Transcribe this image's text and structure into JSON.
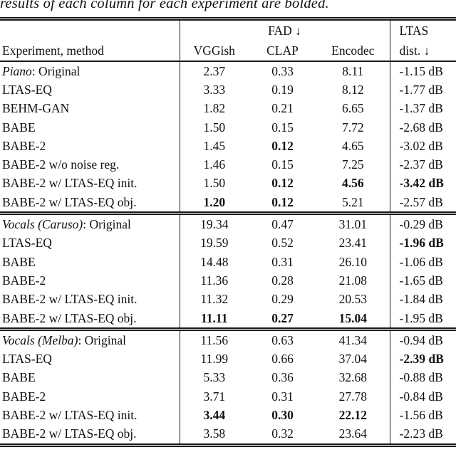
{
  "caption": "results of each column for each experiment are bolded.",
  "header": {
    "experiment": "Experiment, method",
    "fad_group": "FAD ↓",
    "vggish": "VGGish",
    "clap": "CLAP",
    "encodec": "Encodec",
    "ltas_line1": "LTAS",
    "ltas_line2": "dist. ↓"
  },
  "text_color": "#111111",
  "chart_data": {
    "type": "table",
    "title": "results of each column for each experiment are bolded.",
    "columns": [
      "Experiment, method",
      "FAD VGGish",
      "FAD CLAP",
      "FAD Encodec",
      "LTAS dist."
    ]
  },
  "sections": [
    {
      "rows": [
        {
          "prefix": "Piano",
          "rest": ": Original",
          "cells": [
            [
              "2.37",
              0
            ],
            [
              "0.33",
              0
            ],
            [
              "8.11",
              0
            ],
            [
              "-1.15 dB",
              0
            ]
          ]
        },
        {
          "prefix": "",
          "rest": "LTAS-EQ",
          "cells": [
            [
              "3.33",
              0
            ],
            [
              "0.19",
              0
            ],
            [
              "8.12",
              0
            ],
            [
              "-1.77 dB",
              0
            ]
          ]
        },
        {
          "prefix": "",
          "rest": "BEHM-GAN",
          "cells": [
            [
              "1.82",
              0
            ],
            [
              "0.21",
              0
            ],
            [
              "6.65",
              0
            ],
            [
              "-1.37 dB",
              0
            ]
          ]
        },
        {
          "prefix": "",
          "rest": "BABE",
          "cells": [
            [
              "1.50",
              0
            ],
            [
              "0.15",
              0
            ],
            [
              "7.72",
              0
            ],
            [
              "-2.68 dB",
              0
            ]
          ]
        },
        {
          "prefix": "",
          "rest": "BABE-2",
          "cells": [
            [
              "1.45",
              0
            ],
            [
              "0.12",
              1
            ],
            [
              "4.65",
              0
            ],
            [
              "-3.02 dB",
              0
            ]
          ]
        },
        {
          "prefix": "",
          "rest": "BABE-2 w/o noise reg.",
          "cells": [
            [
              "1.46",
              0
            ],
            [
              "0.15",
              0
            ],
            [
              "7.25",
              0
            ],
            [
              "-2.37 dB",
              0
            ]
          ]
        },
        {
          "prefix": "",
          "rest": "BABE-2 w/ LTAS-EQ init.",
          "cells": [
            [
              "1.50",
              0
            ],
            [
              "0.12",
              1
            ],
            [
              "4.56",
              1
            ],
            [
              "-3.42 dB",
              1
            ]
          ]
        },
        {
          "prefix": "",
          "rest": "BABE-2 w/ LTAS-EQ obj.",
          "cells": [
            [
              "1.20",
              1
            ],
            [
              "0.12",
              1
            ],
            [
              "5.21",
              0
            ],
            [
              "-2.57 dB",
              0
            ]
          ]
        }
      ]
    },
    {
      "rows": [
        {
          "prefix": "Vocals (Caruso)",
          "rest": ": Original",
          "cells": [
            [
              "19.34",
              0
            ],
            [
              "0.47",
              0
            ],
            [
              "31.01",
              0
            ],
            [
              "-0.29 dB",
              0
            ]
          ]
        },
        {
          "prefix": "",
          "rest": "LTAS-EQ",
          "cells": [
            [
              "19.59",
              0
            ],
            [
              "0.52",
              0
            ],
            [
              "23.41",
              0
            ],
            [
              "-1.96 dB",
              1
            ]
          ]
        },
        {
          "prefix": "",
          "rest": "BABE",
          "cells": [
            [
              "14.48",
              0
            ],
            [
              "0.31",
              0
            ],
            [
              "26.10",
              0
            ],
            [
              "-1.06 dB",
              0
            ]
          ]
        },
        {
          "prefix": "",
          "rest": "BABE-2",
          "cells": [
            [
              "11.36",
              0
            ],
            [
              "0.28",
              0
            ],
            [
              "21.08",
              0
            ],
            [
              "-1.65 dB",
              0
            ]
          ]
        },
        {
          "prefix": "",
          "rest": "BABE-2 w/ LTAS-EQ init.",
          "cells": [
            [
              "11.32",
              0
            ],
            [
              "0.29",
              0
            ],
            [
              "20.53",
              0
            ],
            [
              "-1.84 dB",
              0
            ]
          ]
        },
        {
          "prefix": "",
          "rest": "BABE-2 w/ LTAS-EQ obj.",
          "cells": [
            [
              "11.11",
              1
            ],
            [
              "0.27",
              1
            ],
            [
              "15.04",
              1
            ],
            [
              "-1.95 dB",
              0
            ]
          ]
        }
      ]
    },
    {
      "rows": [
        {
          "prefix": "Vocals (Melba)",
          "rest": ": Original",
          "cells": [
            [
              "11.56",
              0
            ],
            [
              "0.63",
              0
            ],
            [
              "41.34",
              0
            ],
            [
              "-0.94 dB",
              0
            ]
          ]
        },
        {
          "prefix": "",
          "rest": "LTAS-EQ",
          "cells": [
            [
              "11.99",
              0
            ],
            [
              "0.66",
              0
            ],
            [
              "37.04",
              0
            ],
            [
              "-2.39 dB",
              1
            ]
          ]
        },
        {
          "prefix": "",
          "rest": "BABE",
          "cells": [
            [
              "5.33",
              0
            ],
            [
              "0.36",
              0
            ],
            [
              "32.68",
              0
            ],
            [
              "-0.88 dB",
              0
            ]
          ]
        },
        {
          "prefix": "",
          "rest": "BABE-2",
          "cells": [
            [
              "3.71",
              0
            ],
            [
              "0.31",
              0
            ],
            [
              "27.78",
              0
            ],
            [
              "-0.84 dB",
              0
            ]
          ]
        },
        {
          "prefix": "",
          "rest": "BABE-2 w/ LTAS-EQ init.",
          "cells": [
            [
              "3.44",
              1
            ],
            [
              "0.30",
              1
            ],
            [
              "22.12",
              1
            ],
            [
              "-1.56 dB",
              0
            ]
          ]
        },
        {
          "prefix": "",
          "rest": "BABE-2 w/ LTAS-EQ obj.",
          "cells": [
            [
              "3.58",
              0
            ],
            [
              "0.32",
              0
            ],
            [
              "23.64",
              0
            ],
            [
              "-2.23 dB",
              0
            ]
          ]
        }
      ]
    }
  ]
}
